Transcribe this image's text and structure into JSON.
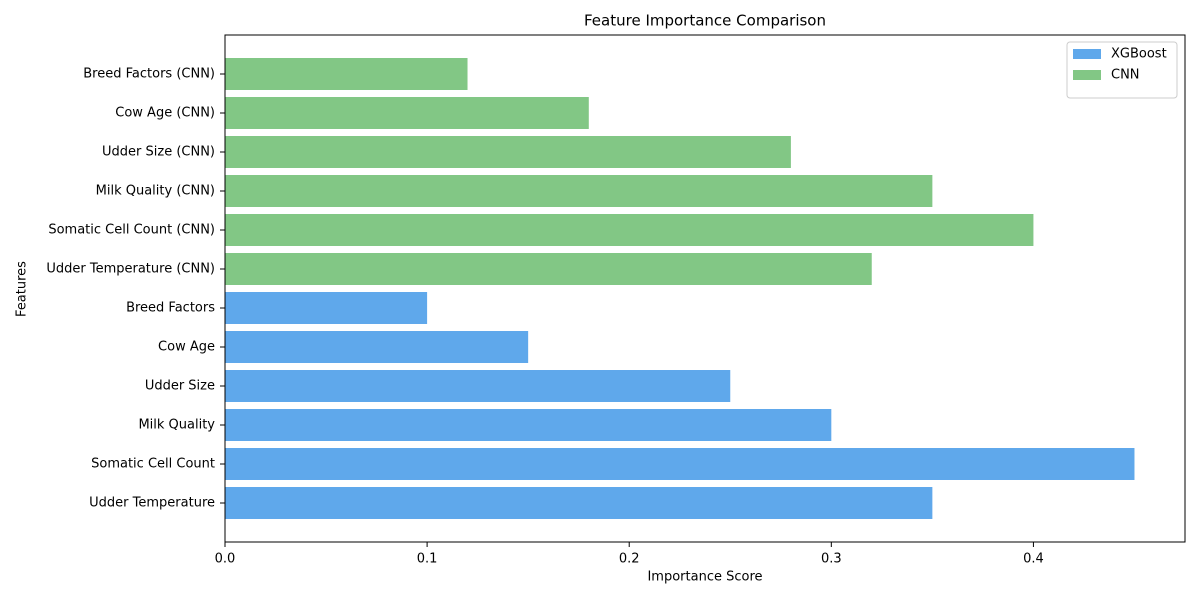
{
  "chart_data": {
    "type": "barh",
    "title": "Feature Importance Comparison",
    "xlabel": "Importance Score",
    "ylabel": "Features",
    "categories": [
      "Udder Temperature",
      "Somatic Cell Count",
      "Milk Quality",
      "Udder Size",
      "Cow Age",
      "Breed Factors",
      "Udder Temperature (CNN)",
      "Somatic Cell Count (CNN)",
      "Milk Quality (CNN)",
      "Udder Size (CNN)",
      "Cow Age (CNN)",
      "Breed Factors (CNN)"
    ],
    "series": [
      {
        "name": "XGBoost",
        "color": "#5fa8eb",
        "values": [
          0.35,
          0.45,
          0.3,
          0.25,
          0.15,
          0.1,
          null,
          null,
          null,
          null,
          null,
          null
        ]
      },
      {
        "name": "CNN",
        "color": "#82c785",
        "values": [
          null,
          null,
          null,
          null,
          null,
          null,
          0.32,
          0.4,
          0.35,
          0.28,
          0.18,
          0.12
        ]
      }
    ],
    "xlim": [
      0,
      0.475
    ],
    "xticks": [
      {
        "value": 0,
        "label": "0.0"
      },
      0.1,
      0.2,
      0.3,
      0.4
    ],
    "legend": "upper right"
  }
}
